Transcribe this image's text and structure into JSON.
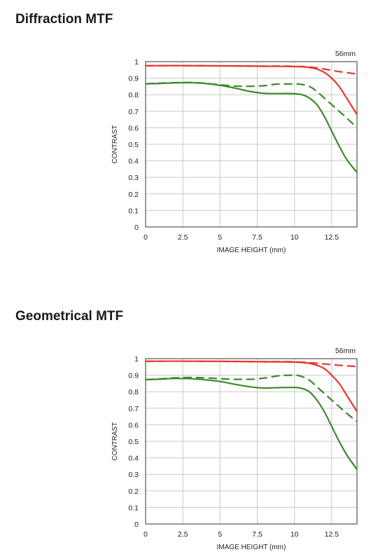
{
  "charts": [
    {
      "heading": "Diffraction MTF",
      "chart_data": {
        "type": "line",
        "title": "Diffraction MTF",
        "annotation": "56mm",
        "xlabel": "IMAGE HEIGHT (mm)",
        "ylabel": "CONTRAST",
        "xlim": [
          0,
          14.2
        ],
        "ylim": [
          0,
          1
        ],
        "xticks": [
          0,
          2.5,
          5,
          7.5,
          10,
          12.5
        ],
        "xtick_labels": [
          "0",
          "2.5",
          "5",
          "7.5",
          "10",
          "12.5"
        ],
        "yticks": [
          0,
          0.1,
          0.2,
          0.3,
          0.4,
          0.5,
          0.6,
          0.7,
          0.8,
          0.9,
          1
        ],
        "ytick_labels": [
          "0",
          "0.1",
          "0.2",
          "0.3",
          "0.4",
          "0.5",
          "0.6",
          "0.7",
          "0.8",
          "0.9",
          "1"
        ],
        "grid": true,
        "series": [
          {
            "color": "#e8372e",
            "dash": "solid",
            "x": [
              0,
              2,
              4,
              6,
              8,
              10,
              11,
              11.5,
              12,
              12.5,
              13,
              13.5,
              14.2
            ],
            "y": [
              0.975,
              0.976,
              0.975,
              0.974,
              0.972,
              0.97,
              0.965,
              0.955,
              0.935,
              0.9,
              0.85,
              0.78,
              0.68
            ]
          },
          {
            "color": "#e8372e",
            "dash": "dashed",
            "x": [
              0,
              2,
              4,
              6,
              8,
              10,
              11,
              12,
              13,
              14.2
            ],
            "y": [
              0.975,
              0.976,
              0.975,
              0.974,
              0.973,
              0.972,
              0.968,
              0.955,
              0.94,
              0.925
            ]
          },
          {
            "color": "#3a8a2c",
            "dash": "solid",
            "x": [
              0,
              1,
              2,
              3,
              4,
              5,
              6,
              7,
              8,
              9,
              10,
              10.5,
              11,
              11.5,
              12,
              12.5,
              13,
              13.5,
              14.2
            ],
            "y": [
              0.866,
              0.868,
              0.872,
              0.873,
              0.868,
              0.857,
              0.84,
              0.82,
              0.808,
              0.807,
              0.806,
              0.8,
              0.78,
              0.74,
              0.67,
              0.58,
              0.49,
              0.41,
              0.33
            ]
          },
          {
            "color": "#3a8a2c",
            "dash": "dashed",
            "x": [
              0,
              1,
              2,
              3,
              4,
              5,
              6,
              7,
              8,
              9,
              10,
              11,
              11.5,
              12,
              12.5,
              13,
              13.5,
              14.2
            ],
            "y": [
              0.866,
              0.87,
              0.873,
              0.874,
              0.869,
              0.86,
              0.852,
              0.851,
              0.855,
              0.865,
              0.865,
              0.85,
              0.82,
              0.78,
              0.74,
              0.7,
              0.66,
              0.6
            ]
          }
        ]
      }
    },
    {
      "heading": "Geometrical MTF",
      "chart_data": {
        "type": "line",
        "title": "Geometrical MTF",
        "annotation": "56mm",
        "xlabel": "IMAGE HEIGHT (mm)",
        "ylabel": "CONTRAST",
        "xlim": [
          0,
          14.2
        ],
        "ylim": [
          0,
          1
        ],
        "xticks": [
          0,
          2.5,
          5,
          7.5,
          10,
          12.5
        ],
        "xtick_labels": [
          "0",
          "2.5",
          "5",
          "7.5",
          "10",
          "12.5"
        ],
        "yticks": [
          0,
          0.1,
          0.2,
          0.3,
          0.4,
          0.5,
          0.6,
          0.7,
          0.8,
          0.9,
          1
        ],
        "ytick_labels": [
          "0",
          "0.1",
          "0.2",
          "0.3",
          "0.4",
          "0.5",
          "0.6",
          "0.7",
          "0.8",
          "0.9",
          "1"
        ],
        "grid": true,
        "series": [
          {
            "color": "#e8372e",
            "dash": "solid",
            "x": [
              0,
              2,
              4,
              6,
              8,
              10,
              11,
              11.5,
              12,
              12.5,
              13,
              13.5,
              14.2
            ],
            "y": [
              0.984,
              0.985,
              0.984,
              0.983,
              0.981,
              0.979,
              0.972,
              0.96,
              0.94,
              0.9,
              0.85,
              0.78,
              0.68
            ]
          },
          {
            "color": "#e8372e",
            "dash": "dashed",
            "x": [
              0,
              2,
              4,
              6,
              8,
              10,
              11,
              12,
              13,
              14.2
            ],
            "y": [
              0.984,
              0.985,
              0.984,
              0.983,
              0.982,
              0.981,
              0.976,
              0.968,
              0.96,
              0.952
            ]
          },
          {
            "color": "#3a8a2c",
            "dash": "solid",
            "x": [
              0,
              1,
              2,
              3,
              4,
              5,
              6,
              7,
              8,
              9,
              10,
              10.5,
              11,
              11.5,
              12,
              12.5,
              13,
              13.5,
              14.2
            ],
            "y": [
              0.873,
              0.876,
              0.88,
              0.879,
              0.872,
              0.862,
              0.845,
              0.83,
              0.822,
              0.825,
              0.826,
              0.82,
              0.8,
              0.75,
              0.68,
              0.59,
              0.5,
              0.42,
              0.33
            ]
          },
          {
            "color": "#3a8a2c",
            "dash": "dashed",
            "x": [
              0,
              1,
              2,
              3,
              4,
              5,
              6,
              7,
              8,
              9,
              10,
              11,
              11.5,
              12,
              12.5,
              13,
              13.5,
              14.2
            ],
            "y": [
              0.873,
              0.878,
              0.884,
              0.886,
              0.884,
              0.879,
              0.875,
              0.875,
              0.883,
              0.897,
              0.9,
              0.87,
              0.83,
              0.79,
              0.75,
              0.71,
              0.67,
              0.62
            ]
          }
        ]
      }
    }
  ]
}
